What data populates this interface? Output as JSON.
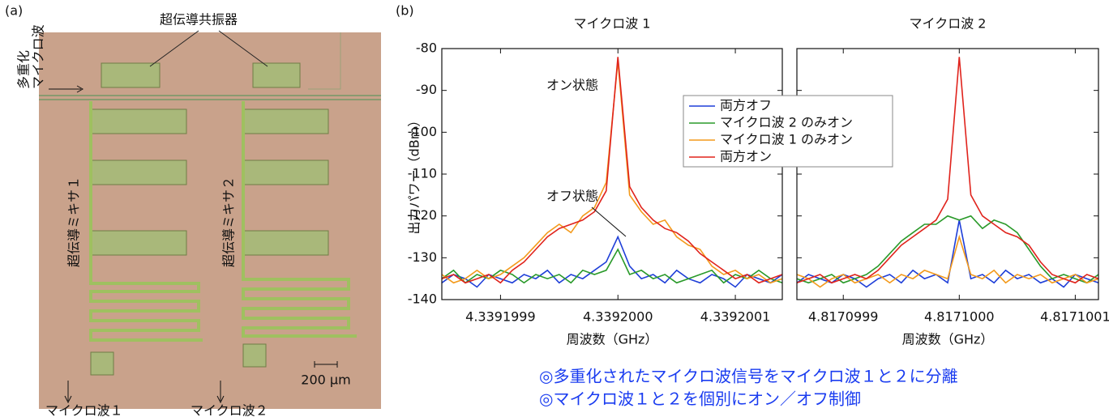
{
  "panel_a": {
    "label": "(a)",
    "resonator_label": "超伝導共振器",
    "input_label": [
      "多重化",
      "マイクロ波"
    ],
    "mixer_labels": [
      "超伝導ミキサ１",
      "超伝導ミキサ２"
    ],
    "scale_label": "200 µm",
    "output_labels": [
      "マイクロ波１",
      "マイクロ波２"
    ]
  },
  "panel_b_label": "(b)",
  "chart_data": [
    {
      "type": "line",
      "title": "マイクロ波 1",
      "xlabel": "周波数（GHz）",
      "ylabel": "出力パワー（dBm）",
      "x": [
        4.33919985,
        4.33919986,
        4.33919987,
        4.33919988,
        4.33919989,
        4.3391999,
        4.33919991,
        4.33919992,
        4.33919993,
        4.33919994,
        4.33919995,
        4.33919996,
        4.33919997,
        4.33919998,
        4.33919999,
        4.3392,
        4.33920001,
        4.33920002,
        4.33920003,
        4.33920004,
        4.33920005,
        4.33920006,
        4.33920007,
        4.33920008,
        4.33920009,
        4.3392001,
        4.33920011,
        4.33920012,
        4.33920013,
        4.33920014
      ],
      "xlim": [
        4.33919985,
        4.33920014
      ],
      "xticks": [
        4.3391999,
        {
          "value": 4.3392,
          "label": "4.3392000"
        },
        4.3392001
      ],
      "ylim": [
        -140,
        -80
      ],
      "yticks": [
        -140,
        -130,
        -120,
        -110,
        -100,
        -90,
        -80
      ],
      "annotations": [
        "オン状態",
        "オフ状態"
      ],
      "series": [
        {
          "name": "両方オフ",
          "color": "#1f3fd8",
          "values": [
            -136,
            -134,
            -135,
            -137,
            -134,
            -135,
            -136,
            -134,
            -135,
            -133,
            -136,
            -134,
            -135,
            -133,
            -131,
            -125,
            -132,
            -135,
            -134,
            -136,
            -133,
            -135,
            -136,
            -134,
            -135,
            -137,
            -134,
            -135,
            -136,
            -134
          ]
        },
        {
          "name": "マイクロ波 2 のみオン",
          "color": "#2a9a2a",
          "values": [
            -135,
            -133,
            -136,
            -134,
            -135,
            -133,
            -134,
            -136,
            -134,
            -135,
            -134,
            -136,
            -133,
            -134,
            -133,
            -128,
            -134,
            -133,
            -135,
            -134,
            -136,
            -135,
            -134,
            -133,
            -136,
            -134,
            -135,
            -133,
            -135,
            -136
          ]
        },
        {
          "name": "マイクロ波 1 のみオン",
          "color": "#f39a1c",
          "values": [
            -134,
            -136,
            -135,
            -133,
            -135,
            -134,
            -132,
            -130,
            -127,
            -124,
            -122,
            -124,
            -120,
            -118,
            -112,
            -83,
            -115,
            -119,
            -122,
            -121,
            -125,
            -127,
            -128,
            -132,
            -134,
            -133,
            -135,
            -134,
            -136,
            -135
          ]
        },
        {
          "name": "両方オン",
          "color": "#e0231c",
          "values": [
            -135,
            -134,
            -136,
            -135,
            -134,
            -136,
            -133,
            -131,
            -128,
            -125,
            -123,
            -122,
            -121,
            -119,
            -114,
            -82,
            -113,
            -118,
            -121,
            -123,
            -124,
            -126,
            -129,
            -131,
            -133,
            -135,
            -134,
            -136,
            -135,
            -134
          ]
        }
      ]
    },
    {
      "type": "line",
      "title": "マイクロ波 2",
      "xlabel": "周波数（GHz）",
      "x": [
        4.81709986,
        4.81709987,
        4.81709988,
        4.81709989,
        4.8170999,
        4.81709991,
        4.81709992,
        4.81709993,
        4.81709994,
        4.81709995,
        4.81709996,
        4.81709997,
        4.81709998,
        4.81709999,
        4.8171,
        4.81710001,
        4.81710002,
        4.81710003,
        4.81710004,
        4.81710005,
        4.81710006,
        4.81710007,
        4.81710008,
        4.81710009,
        4.8171001,
        4.81710011,
        4.81710012
      ],
      "xlim": [
        4.81709986,
        4.81710012
      ],
      "xticks": [
        4.8170999,
        {
          "value": 4.8171,
          "label": "4.8171000"
        },
        4.8171001
      ],
      "ylim": [
        -140,
        -80
      ],
      "yticks": [
        -140,
        -130,
        -120,
        -110,
        -100,
        -90,
        -80
      ],
      "series": [
        {
          "color": "#1f3fd8",
          "values": [
            -136,
            -134,
            -135,
            -136,
            -134,
            -135,
            -137,
            -135,
            -134,
            -136,
            -133,
            -135,
            -134,
            -136,
            -121,
            -135,
            -134,
            -136,
            -133,
            -135,
            -134,
            -136,
            -135,
            -137,
            -134,
            -135,
            -136
          ]
        },
        {
          "color": "#2a9a2a",
          "values": [
            -135,
            -136,
            -135,
            -134,
            -136,
            -135,
            -134,
            -132,
            -129,
            -126,
            -124,
            -122,
            -122,
            -120,
            -121,
            -120,
            -123,
            -121,
            -122,
            -124,
            -128,
            -132,
            -135,
            -134,
            -135,
            -136,
            -134
          ]
        },
        {
          "color": "#f39a1c",
          "values": [
            -134,
            -135,
            -137,
            -135,
            -134,
            -136,
            -135,
            -134,
            -136,
            -134,
            -135,
            -133,
            -134,
            -135,
            -125,
            -134,
            -135,
            -133,
            -136,
            -134,
            -135,
            -134,
            -136,
            -135,
            -134,
            -136,
            -135
          ]
        },
        {
          "color": "#e0231c",
          "values": [
            -136,
            -135,
            -134,
            -136,
            -135,
            -134,
            -135,
            -133,
            -130,
            -127,
            -125,
            -123,
            -121,
            -116,
            -82,
            -115,
            -120,
            -122,
            -124,
            -125,
            -127,
            -131,
            -134,
            -135,
            -136,
            -134,
            -135
          ]
        }
      ]
    }
  ],
  "captions": [
    "◎多重化されたマイクロ波信号をマイクロ波１と２に分離",
    "◎マイクロ波１と２を個別にオン／オフ制御"
  ]
}
